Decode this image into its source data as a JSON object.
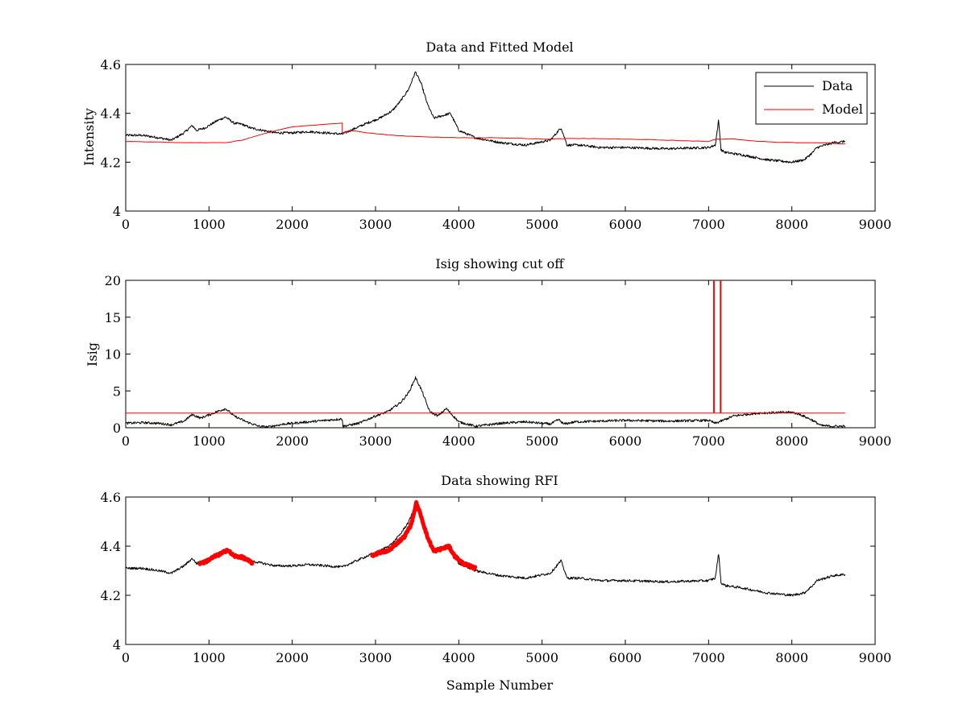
{
  "figure": {
    "xlabel_bottom": "Sample Number"
  },
  "chart_data": [
    {
      "type": "line",
      "title": "Data and Fitted Model",
      "xlabel": "",
      "ylabel": "Intensity",
      "xlim": [
        0,
        9000
      ],
      "ylim": [
        4,
        4.6
      ],
      "xticks": [
        "0",
        "1000",
        "2000",
        "3000",
        "4000",
        "5000",
        "6000",
        "7000",
        "8000",
        "9000"
      ],
      "yticks": [
        "4",
        "4.2",
        "4.4",
        "4.6"
      ],
      "grid": false,
      "legend_position": "top-right",
      "series": [
        {
          "name": "Data",
          "color": "#000000",
          "x": [
            0,
            200,
            400,
            550,
            700,
            800,
            850,
            950,
            1100,
            1200,
            1300,
            1400,
            1500,
            1650,
            1800,
            2000,
            2200,
            2400,
            2600,
            2700,
            2900,
            3050,
            3200,
            3300,
            3400,
            3480,
            3550,
            3620,
            3700,
            3800,
            3900,
            4000,
            4200,
            4500,
            4800,
            5100,
            5200,
            5230,
            5300,
            5450,
            5700,
            6000,
            6500,
            7000,
            7080,
            7120,
            7150,
            7200,
            7400,
            7700,
            8000,
            8150,
            8250,
            8300,
            8400,
            8500,
            8640
          ],
          "y": [
            4.31,
            4.31,
            4.3,
            4.29,
            4.32,
            4.35,
            4.33,
            4.34,
            4.37,
            4.385,
            4.36,
            4.355,
            4.34,
            4.33,
            4.32,
            4.32,
            4.325,
            4.32,
            4.315,
            4.33,
            4.36,
            4.38,
            4.41,
            4.45,
            4.5,
            4.57,
            4.52,
            4.44,
            4.38,
            4.39,
            4.4,
            4.33,
            4.3,
            4.28,
            4.27,
            4.29,
            4.33,
            4.34,
            4.27,
            4.27,
            4.26,
            4.26,
            4.255,
            4.26,
            4.27,
            4.37,
            4.25,
            4.24,
            4.23,
            4.21,
            4.2,
            4.21,
            4.24,
            4.26,
            4.27,
            4.28,
            4.285
          ]
        },
        {
          "name": "Model",
          "color": "#ff0000",
          "x": [
            0,
            600,
            1200,
            1400,
            1600,
            1800,
            2000,
            2200,
            2400,
            2600,
            2600,
            2700,
            2900,
            3200,
            3500,
            4000,
            4500,
            5000,
            5500,
            6000,
            6500,
            7000,
            7100,
            7300,
            7600,
            8000,
            8300,
            8640
          ],
          "y": [
            4.285,
            4.28,
            4.28,
            4.29,
            4.31,
            4.33,
            4.345,
            4.35,
            4.355,
            4.36,
            4.32,
            4.33,
            4.32,
            4.31,
            4.305,
            4.3,
            4.3,
            4.295,
            4.297,
            4.295,
            4.29,
            4.285,
            4.295,
            4.295,
            4.285,
            4.28,
            4.28,
            4.275
          ]
        }
      ]
    },
    {
      "type": "line",
      "title": "Isig showing cut off",
      "xlabel": "",
      "ylabel": "Isig",
      "xlim": [
        0,
        9000
      ],
      "ylim": [
        0,
        20
      ],
      "xticks": [
        "0",
        "1000",
        "2000",
        "3000",
        "4000",
        "5000",
        "6000",
        "7000",
        "8000",
        "9000"
      ],
      "yticks": [
        "0",
        "5",
        "10",
        "15",
        "20"
      ],
      "grid": false,
      "series": [
        {
          "color": "#000000",
          "x": [
            0,
            200,
            400,
            550,
            700,
            800,
            900,
            1100,
            1200,
            1300,
            1450,
            1600,
            1700,
            1900,
            2200,
            2500,
            2600,
            2610,
            2800,
            3000,
            3150,
            3300,
            3400,
            3480,
            3550,
            3650,
            3750,
            3850,
            4000,
            4200,
            4500,
            4800,
            5100,
            5200,
            5260,
            5400,
            5700,
            6000,
            6500,
            7000,
            7080,
            7150,
            7300,
            7600,
            8000,
            8100,
            8250,
            8350,
            8500,
            8640
          ],
          "y": [
            0.6,
            0.7,
            0.6,
            0.4,
            0.9,
            1.8,
            1.3,
            2.2,
            2.6,
            1.6,
            0.8,
            0.2,
            0.1,
            0.5,
            0.8,
            1.1,
            1.2,
            0.2,
            0.6,
            1.6,
            2.2,
            3.4,
            4.8,
            6.8,
            5.2,
            2.2,
            1.6,
            2.6,
            0.8,
            0.2,
            0.6,
            0.8,
            0.5,
            1.1,
            0.5,
            0.8,
            0.9,
            1.0,
            0.9,
            1.0,
            0.6,
            0.9,
            1.6,
            2.0,
            2.1,
            1.8,
            1.0,
            0.3,
            0.2,
            0.2
          ]
        },
        {
          "color": "#ff0000",
          "x": [
            0,
            7060,
            7060,
            7070,
            7070,
            7140,
            7140,
            7150,
            7150,
            8640
          ],
          "y": [
            2.0,
            2.0,
            20,
            20,
            2.0,
            2.0,
            20,
            20,
            2.0,
            2.0
          ]
        }
      ]
    },
    {
      "type": "line",
      "title": "Data showing RFI",
      "xlabel": "Sample Number",
      "ylabel": "",
      "xlim": [
        0,
        9000
      ],
      "ylim": [
        4,
        4.6
      ],
      "xticks": [
        "0",
        "1000",
        "2000",
        "3000",
        "4000",
        "5000",
        "6000",
        "7000",
        "8000",
        "9000"
      ],
      "yticks": [
        "4",
        "4.2",
        "4.4",
        "4.6"
      ],
      "grid": false,
      "series": [
        {
          "color": "#000000",
          "x": [
            0,
            200,
            400,
            550,
            700,
            800,
            850,
            950,
            1100,
            1200,
            1300,
            1400,
            1500,
            1650,
            1800,
            2000,
            2200,
            2400,
            2600,
            2700,
            2900,
            3050,
            3200,
            3300,
            3400,
            3480,
            3550,
            3620,
            3700,
            3800,
            3900,
            4000,
            4200,
            4500,
            4800,
            5100,
            5200,
            5230,
            5300,
            5450,
            5700,
            6000,
            6500,
            7000,
            7080,
            7120,
            7150,
            7200,
            7400,
            7700,
            8000,
            8150,
            8250,
            8300,
            8400,
            8500,
            8640
          ],
          "y": [
            4.31,
            4.31,
            4.3,
            4.29,
            4.32,
            4.35,
            4.33,
            4.34,
            4.37,
            4.385,
            4.36,
            4.355,
            4.34,
            4.33,
            4.32,
            4.32,
            4.325,
            4.32,
            4.315,
            4.33,
            4.36,
            4.38,
            4.41,
            4.45,
            4.5,
            4.57,
            4.52,
            4.44,
            4.38,
            4.39,
            4.4,
            4.33,
            4.3,
            4.28,
            4.27,
            4.29,
            4.33,
            4.34,
            4.27,
            4.27,
            4.26,
            4.26,
            4.255,
            4.26,
            4.27,
            4.37,
            4.25,
            4.24,
            4.23,
            4.21,
            4.2,
            4.21,
            4.24,
            4.26,
            4.27,
            4.28,
            4.285
          ]
        },
        {
          "color": "#ff0000",
          "x": [
            880,
            950,
            1050,
            1150,
            1220,
            1300,
            1400,
            1530
          ],
          "y": [
            4.33,
            4.335,
            4.355,
            4.37,
            4.385,
            4.36,
            4.355,
            4.33
          ]
        },
        {
          "color": "#ff0000",
          "x": [
            2950,
            3050,
            3150,
            3250,
            3350,
            3430,
            3490,
            3550,
            3620,
            3700,
            3800,
            3880,
            3950,
            4050,
            4200
          ],
          "y": [
            4.36,
            4.375,
            4.38,
            4.41,
            4.44,
            4.49,
            4.575,
            4.52,
            4.44,
            4.38,
            4.39,
            4.4,
            4.36,
            4.33,
            4.31
          ]
        }
      ]
    }
  ]
}
